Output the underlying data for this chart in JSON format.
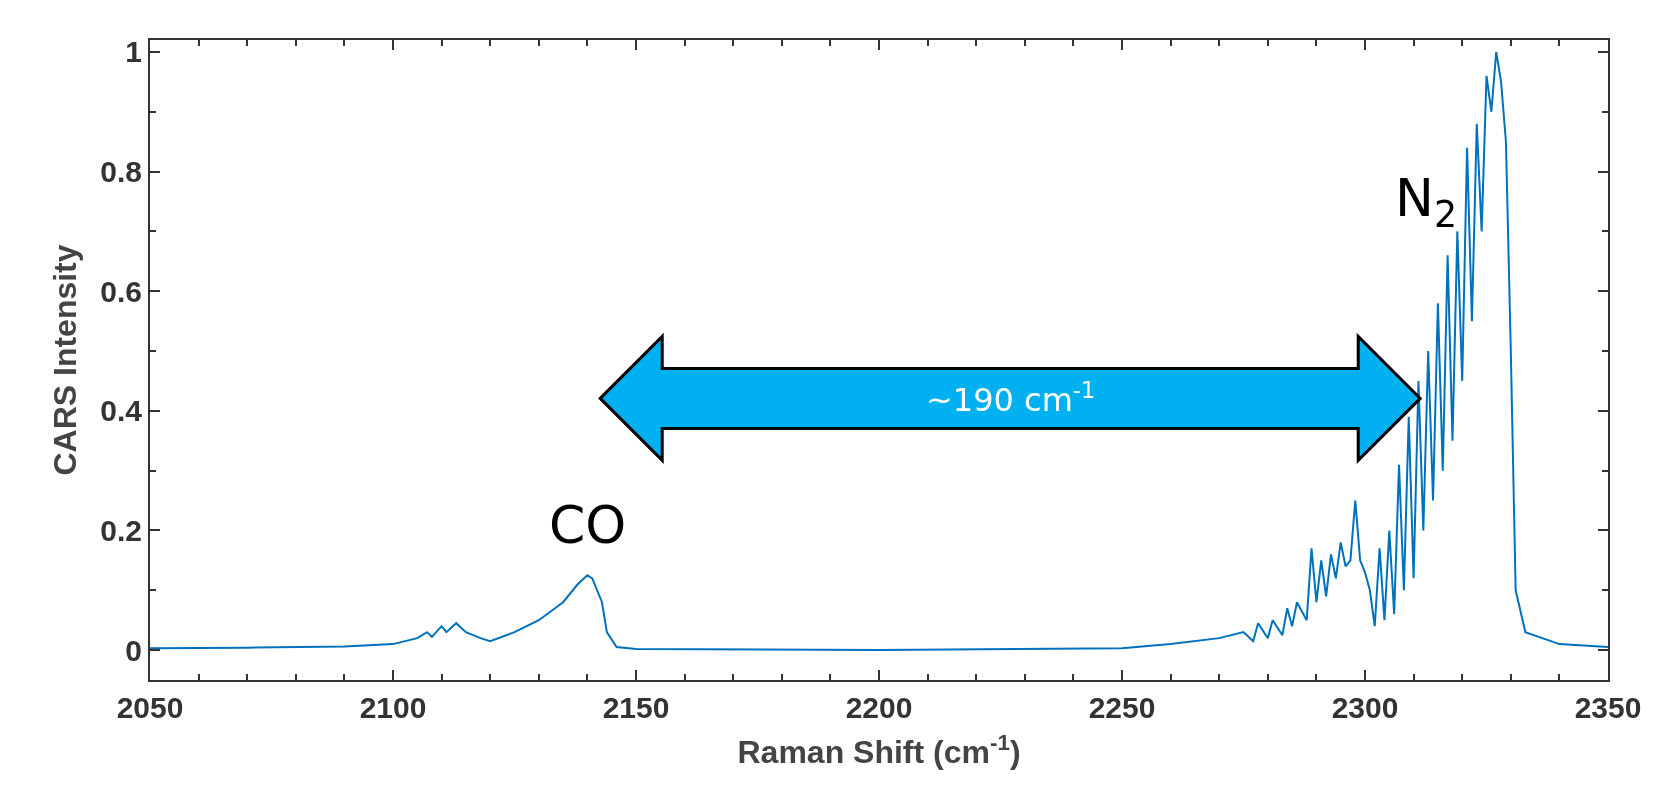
{
  "chart_data": {
    "type": "line",
    "xlabel": "Raman Shift (cm$^{-1}$)",
    "ylabel": "CARS Intensity",
    "xlim": [
      2050,
      2350
    ],
    "xticks": [
      2050,
      2100,
      2150,
      2200,
      2250,
      2300,
      2350
    ],
    "ylim": [
      -0.05,
      1.02
    ],
    "yticks": [
      0,
      0.2,
      0.4,
      0.6,
      0.8,
      1
    ],
    "grid": false,
    "marker": "none",
    "line_style": "solid",
    "annotations": [
      {
        "text": "CO",
        "x": 2140,
        "y": 0.125
      },
      {
        "text": "N$_{2}$",
        "x": 2327,
        "y": 1
      },
      "~190 cm$^{-1}$"
    ],
    "series": [
      {
        "color": "#0072bd",
        "x": [
          2050,
          2070,
          2090,
          2100,
          2105,
          2107,
          2108,
          2110,
          2111,
          2113,
          2115,
          2118,
          2120,
          2125,
          2130,
          2135,
          2138,
          2140,
          2141,
          2143,
          2144,
          2146,
          2150,
          2200,
          2250,
          2260,
          2270,
          2275,
          2277,
          2278,
          2280,
          2281,
          2283,
          2284,
          2285,
          2286,
          2288,
          2289,
          2290,
          2291,
          2292,
          2293,
          2294,
          2295,
          2296,
          2297,
          2298,
          2299,
          2300,
          2301,
          2302,
          2303,
          2304,
          2305,
          2306,
          2307,
          2308,
          2309,
          2310,
          2311,
          2312,
          2313,
          2314,
          2315,
          2316,
          2317,
          2318,
          2319,
          2320,
          2321,
          2322,
          2323,
          2324,
          2325,
          2326,
          2327,
          2328,
          2329,
          2330,
          2331,
          2333,
          2340,
          2350
        ],
        "values": [
          0.003,
          0.004,
          0.006,
          0.01,
          0.02,
          0.03,
          0.022,
          0.04,
          0.03,
          0.045,
          0.03,
          0.02,
          0.015,
          0.03,
          0.05,
          0.08,
          0.11,
          0.125,
          0.12,
          0.08,
          0.03,
          0.005,
          0.002,
          0.0,
          0.003,
          0.01,
          0.02,
          0.03,
          0.015,
          0.045,
          0.02,
          0.05,
          0.025,
          0.07,
          0.04,
          0.08,
          0.05,
          0.17,
          0.08,
          0.15,
          0.09,
          0.16,
          0.12,
          0.18,
          0.14,
          0.15,
          0.25,
          0.15,
          0.13,
          0.1,
          0.04,
          0.17,
          0.05,
          0.2,
          0.06,
          0.31,
          0.1,
          0.39,
          0.12,
          0.45,
          0.2,
          0.5,
          0.25,
          0.58,
          0.3,
          0.66,
          0.35,
          0.7,
          0.45,
          0.84,
          0.55,
          0.88,
          0.7,
          0.96,
          0.9,
          1.0,
          0.95,
          0.85,
          0.5,
          0.1,
          0.03,
          0.01,
          0.005
        ]
      }
    ]
  }
}
